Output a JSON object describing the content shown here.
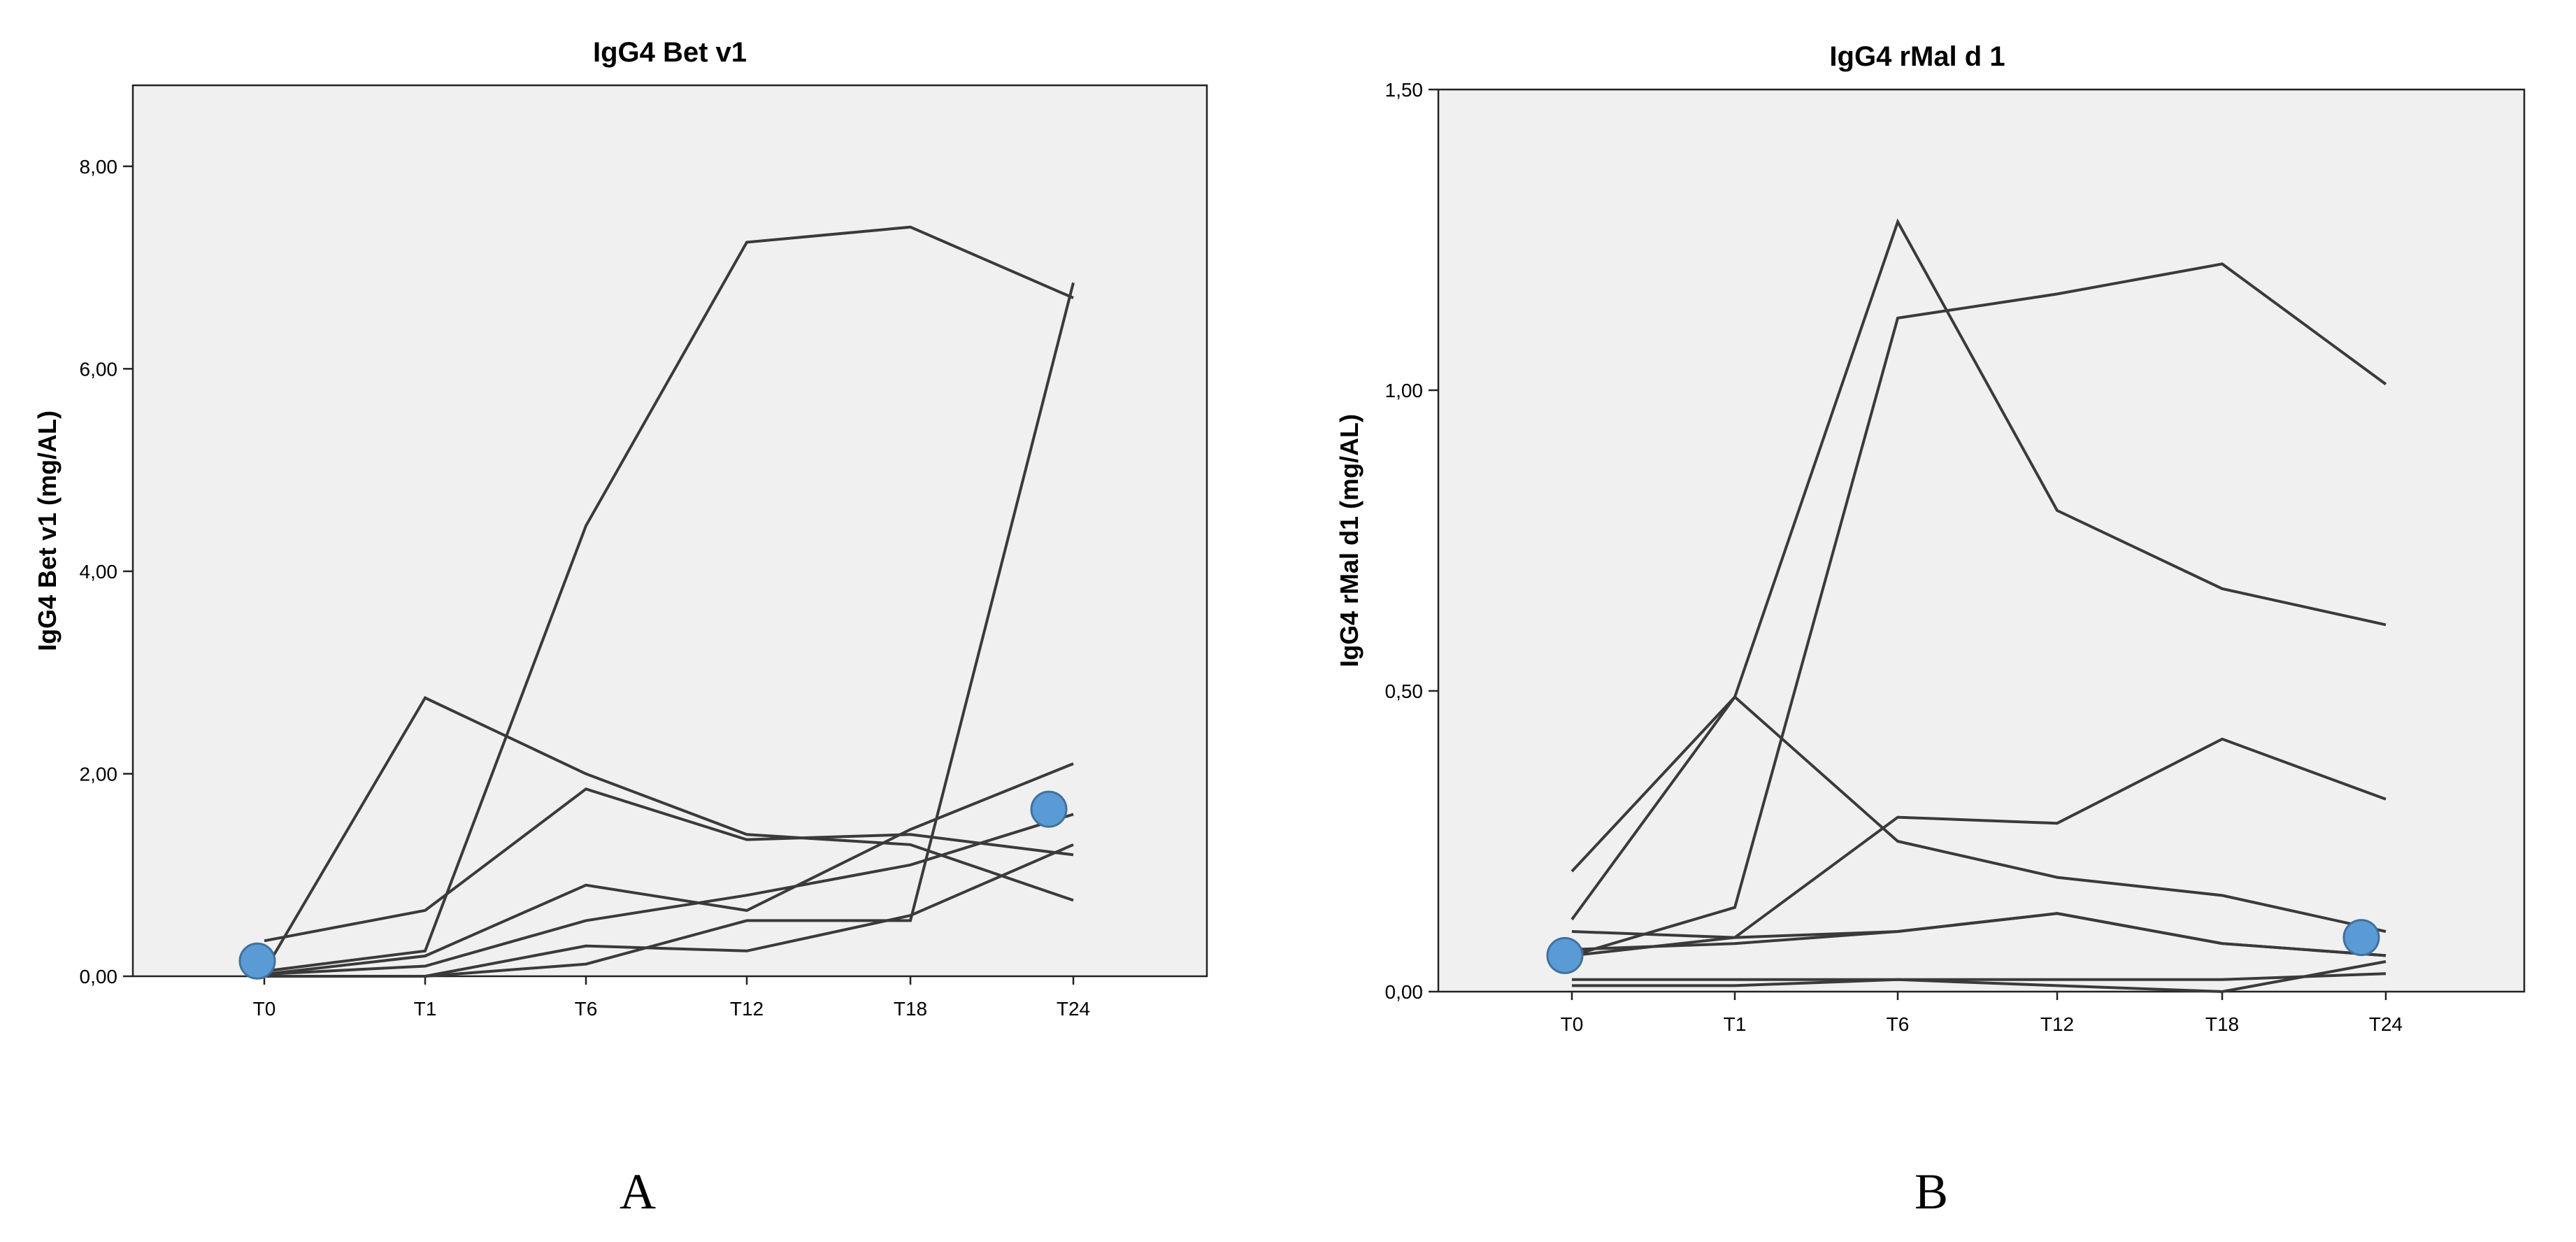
{
  "chart_data": [
    {
      "type": "line",
      "title": "IgG4 Bet v1",
      "xlabel": "",
      "ylabel": "IgG4 Bet v1 (mg/AL)",
      "categories": [
        "T0",
        "T1",
        "T6",
        "T12",
        "T18",
        "T24"
      ],
      "ylim": [
        0,
        8.8
      ],
      "yticks": [
        "0,00",
        "2,00",
        "4,00",
        "6,00",
        "8,00"
      ],
      "ytick_values": [
        0,
        2,
        4,
        6,
        8
      ],
      "grid": false,
      "line_color": "#3a3a3a",
      "plot_background": "#f0f0f0",
      "series": [
        {
          "values": [
            0.35,
            0.65,
            1.85,
            1.35,
            1.4,
            1.2
          ]
        },
        {
          "values": [
            0.05,
            2.75,
            2.0,
            1.4,
            1.3,
            0.75
          ]
        },
        {
          "values": [
            0.05,
            0.25,
            4.45,
            7.25,
            7.4,
            6.7
          ]
        },
        {
          "values": [
            0.02,
            0.2,
            0.9,
            0.65,
            1.45,
            2.1
          ]
        },
        {
          "values": [
            0.02,
            0.1,
            0.55,
            0.8,
            1.1,
            1.6
          ]
        },
        {
          "values": [
            0.0,
            0.0,
            0.3,
            0.25,
            0.6,
            1.3
          ]
        },
        {
          "values": [
            0.0,
            0.0,
            0.12,
            0.55,
            0.55,
            6.85
          ]
        }
      ],
      "markers": [
        {
          "x": "T0",
          "y": 0.15,
          "color": "#5b9bd5"
        },
        {
          "x": "T24",
          "y": 1.65,
          "color": "#5b9bd5"
        }
      ],
      "panel_label": "A"
    },
    {
      "type": "line",
      "title": "IgG4 rMal d 1",
      "xlabel": "",
      "ylabel": "IgG4 rMal d1 (mg/AL)",
      "categories": [
        "T0",
        "T1",
        "T6",
        "T12",
        "T18",
        "T24"
      ],
      "ylim": [
        0,
        1.5
      ],
      "yticks": [
        "0,00",
        "0,50",
        "1,00",
        "1,50"
      ],
      "ytick_values": [
        0,
        0.5,
        1.0,
        1.5
      ],
      "grid": false,
      "line_color": "#3a3a3a",
      "plot_background": "#f0f0f0",
      "series": [
        {
          "values": [
            0.12,
            0.49,
            0.25,
            0.19,
            0.16,
            0.1
          ]
        },
        {
          "values": [
            0.2,
            0.49,
            1.28,
            0.8,
            0.67,
            0.61
          ]
        },
        {
          "values": [
            0.06,
            0.14,
            1.12,
            1.16,
            1.21,
            1.01
          ]
        },
        {
          "values": [
            0.06,
            0.09,
            0.29,
            0.28,
            0.42,
            0.32
          ]
        },
        {
          "values": [
            0.1,
            0.09,
            0.1,
            0.13,
            0.08,
            0.06
          ]
        },
        {
          "values": [
            0.07,
            0.08,
            0.1,
            0.13,
            0.08,
            0.06
          ]
        },
        {
          "values": [
            0.02,
            0.02,
            0.02,
            0.01,
            0.0,
            0.05
          ]
        },
        {
          "values": [
            0.01,
            0.01,
            0.02,
            0.02,
            0.02,
            0.03
          ]
        }
      ],
      "markers": [
        {
          "x": "T0",
          "y": 0.06,
          "color": "#5b9bd5"
        },
        {
          "x": "T24",
          "y": 0.09,
          "color": "#5b9bd5"
        }
      ],
      "panel_label": "B"
    }
  ]
}
